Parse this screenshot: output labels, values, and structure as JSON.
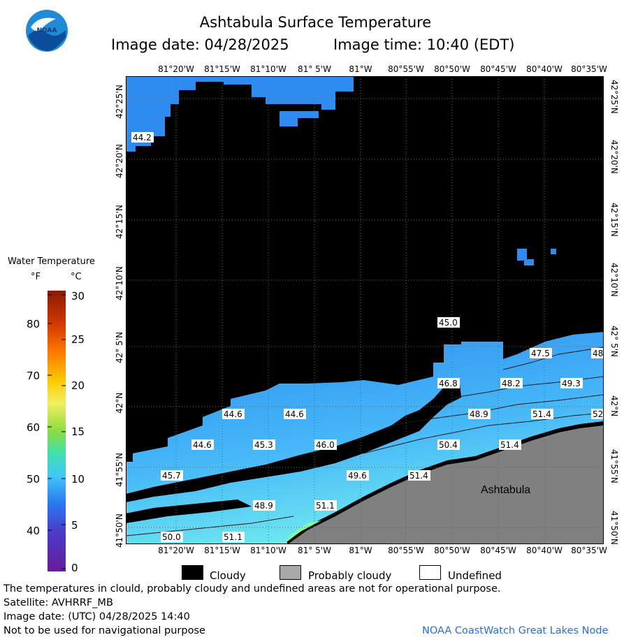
{
  "header": {
    "title": "Ashtabula Surface Temperature",
    "image_date": "Image date: 04/28/2025",
    "image_time": "Image time: 10:40 (EDT)"
  },
  "logo": {
    "text": "NOAA"
  },
  "axes": {
    "lon_ticks": [
      "81°20'W",
      "81°15'W",
      "81°10'W",
      "81° 5'W",
      "81°W",
      "80°55'W",
      "80°50'W",
      "80°45'W",
      "80°40'W",
      "80°35'W"
    ],
    "lat_ticks": [
      "42°25'N",
      "42°20'N",
      "42°15'N",
      "42°10'N",
      "42° 5'N",
      "42°N",
      "41°55'N",
      "41°50'N"
    ]
  },
  "map": {
    "place_label": "Ashtabula",
    "isotherm_labels": [
      "44.2",
      "45.0",
      "47.5",
      "48",
      "46.8",
      "48.2",
      "49.3",
      "44.6",
      "44.6",
      "48.9",
      "51.4",
      "52",
      "44.6",
      "45.3",
      "46.0",
      "50.4",
      "51.4",
      "45.7",
      "49.6",
      "51.4",
      "48.9",
      "51.1",
      "50.0",
      "51.1"
    ],
    "colors": {
      "cloud": "#000000",
      "land": "#808080",
      "water_cold": "#2e8cf0",
      "water_mid": "#46b8f8",
      "water_warm": "#6ee8f0",
      "grid": "#6a6a6a"
    }
  },
  "legend": {
    "title": "Water Temperature",
    "unit_f": "°F",
    "unit_c": "°C",
    "f_labels": [
      "80",
      "70",
      "60",
      "50",
      "40"
    ],
    "c_labels": [
      "30",
      "25",
      "20",
      "15",
      "10",
      "5",
      "0"
    ]
  },
  "key": {
    "cloudy": "Cloudy",
    "probably_cloudy": "Probably cloudy",
    "undefined": "Undefined",
    "colors": {
      "cloudy": "#000000",
      "probably_cloudy": "#a9a9a9",
      "undefined": "#ffffff"
    }
  },
  "footer": {
    "disclaimer": "The temperatures in clould, probably cloudy and undefined areas are not for operational purpose.",
    "satellite": "Satellite: AVHRRF_MB",
    "utc_date": "Image date: (UTC) 04/28/2025  14:40",
    "nav_warning": "Not to be used for navigational purpose",
    "credit": "NOAA CoastWatch Great Lakes Node"
  }
}
